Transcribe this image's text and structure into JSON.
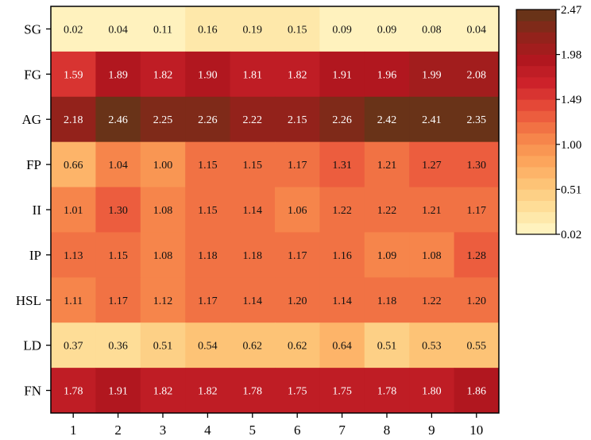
{
  "chart_data": {
    "type": "heatmap",
    "title": "",
    "xlabel": "",
    "ylabel": "",
    "x": [
      "1",
      "2",
      "3",
      "4",
      "5",
      "6",
      "7",
      "8",
      "9",
      "10"
    ],
    "y": [
      "SG",
      "FG",
      "AG",
      "FP",
      "II",
      "IP",
      "HSL",
      "LD",
      "FN"
    ],
    "values": [
      [
        0.02,
        0.04,
        0.11,
        0.16,
        0.19,
        0.15,
        0.09,
        0.09,
        0.08,
        0.04
      ],
      [
        1.59,
        1.89,
        1.82,
        1.9,
        1.81,
        1.82,
        1.91,
        1.96,
        1.99,
        2.08
      ],
      [
        2.18,
        2.46,
        2.25,
        2.26,
        2.22,
        2.15,
        2.26,
        2.42,
        2.41,
        2.35
      ],
      [
        0.66,
        1.04,
        1.0,
        1.15,
        1.15,
        1.17,
        1.31,
        1.21,
        1.27,
        1.3
      ],
      [
        1.01,
        1.3,
        1.08,
        1.15,
        1.14,
        1.06,
        1.22,
        1.22,
        1.21,
        1.17
      ],
      [
        1.13,
        1.15,
        1.08,
        1.18,
        1.18,
        1.17,
        1.16,
        1.09,
        1.08,
        1.28
      ],
      [
        1.11,
        1.17,
        1.12,
        1.17,
        1.14,
        1.2,
        1.14,
        1.18,
        1.22,
        1.2
      ],
      [
        0.37,
        0.36,
        0.51,
        0.54,
        0.62,
        0.62,
        0.64,
        0.51,
        0.53,
        0.55
      ],
      [
        1.78,
        1.91,
        1.82,
        1.82,
        1.78,
        1.75,
        1.75,
        1.78,
        1.8,
        1.86
      ]
    ],
    "value_labels": [
      [
        "0.02",
        "0.04",
        "0.11",
        "0.16",
        "0.19",
        "0.15",
        "0.09",
        "0.09",
        "0.08",
        "0.04"
      ],
      [
        "1.59",
        "1.89",
        "1.82",
        "1.90",
        "1.81",
        "1.82",
        "1.91",
        "1.96",
        "1.99",
        "2.08"
      ],
      [
        "2.18",
        "2.46",
        "2.25",
        "2.26",
        "2.22",
        "2.15",
        "2.26",
        "2.42",
        "2.41",
        "2.35"
      ],
      [
        "0.66",
        "1.04",
        "1.00",
        "1.15",
        "1.15",
        "1.17",
        "1.31",
        "1.21",
        "1.27",
        "1.30"
      ],
      [
        "1.01",
        "1.30",
        "1.08",
        "1.15",
        "1.14",
        "1.06",
        "1.22",
        "1.22",
        "1.21",
        "1.17"
      ],
      [
        "1.13",
        "1.15",
        "1.08",
        "1.18",
        "1.18",
        "1.17",
        "1.16",
        "1.09",
        "1.08",
        "1.28"
      ],
      [
        "1.11",
        "1.17",
        "1.12",
        "1.17",
        "1.14",
        "1.20",
        "1.14",
        "1.18",
        "1.22",
        "1.20"
      ],
      [
        "0.37",
        "0.36",
        "0.51",
        "0.54",
        "0.62",
        "0.62",
        "0.64",
        "0.51",
        "0.53",
        "0.55"
      ],
      [
        "1.78",
        "1.91",
        "1.82",
        "1.82",
        "1.78",
        "1.75",
        "1.75",
        "1.78",
        "1.80",
        "1.86"
      ]
    ],
    "colorbar": {
      "min": 0.02,
      "max": 2.47,
      "ticks": [
        2.47,
        1.98,
        1.49,
        1.0,
        0.51,
        0.02
      ],
      "tick_labels": [
        "2.47",
        "1.98",
        "1.49",
        "1.00",
        "0.51",
        "0.02"
      ],
      "colormap": [
        "#fff7c8",
        "#fee19b",
        "#fdc477",
        "#fca35a",
        "#f57f48",
        "#e8503a",
        "#cf232b",
        "#b0171f",
        "#8f241a",
        "#5e3717"
      ],
      "levels": 20,
      "position": "right"
    },
    "light_text_threshold": 1.49,
    "light_text_color": "#ffffff",
    "dark_text_color": "#111111",
    "grid": false
  }
}
